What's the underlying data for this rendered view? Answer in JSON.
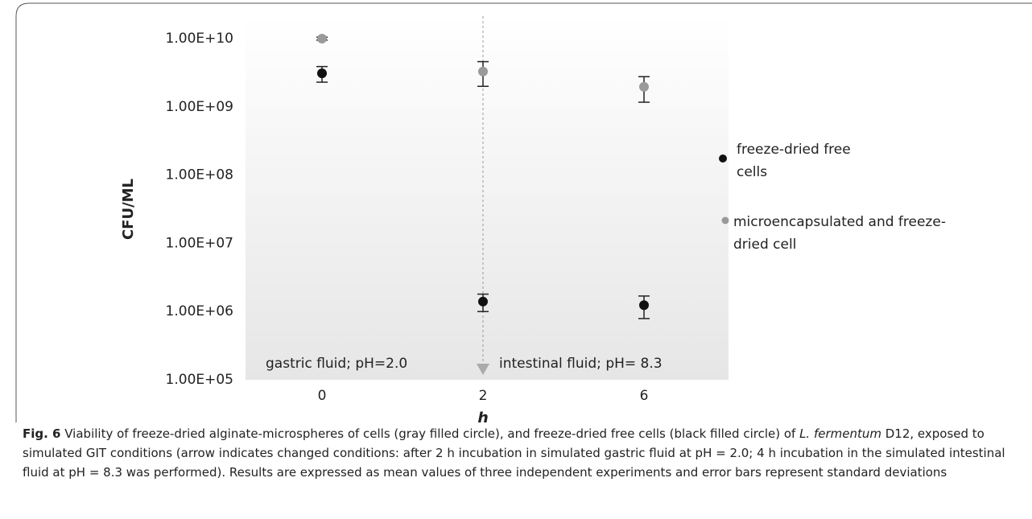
{
  "chart_data": {
    "type": "scatter",
    "y_label": "CFU/ML",
    "x_label": "h",
    "categories": [
      "0",
      "2",
      "6"
    ],
    "log_y": true,
    "ylim": [
      100000,
      10000000000
    ],
    "yticks": [
      {
        "value": 100000,
        "label": "1.00E+05"
      },
      {
        "value": 1000000,
        "label": "1.00E+06"
      },
      {
        "value": 10000000,
        "label": "1.00E+07"
      },
      {
        "value": 100000000,
        "label": "1.00E+08"
      },
      {
        "value": 1000000000,
        "label": "1.00E+09"
      },
      {
        "value": 10000000000,
        "label": "1.00E+10"
      }
    ],
    "series": [
      {
        "name": "freeze-dried free cells",
        "color": "#111111",
        "values": [
          3100000000,
          1400000,
          1240000
        ],
        "errors": [
          800000000,
          400000,
          450000
        ]
      },
      {
        "name": "microencapsulated and freeze-dried cell",
        "color": "#9a9a9a",
        "values": [
          10000000000,
          3300000000,
          1970000000
        ],
        "errors": [
          500000000,
          1300000000,
          800000000
        ]
      }
    ],
    "legend": "right",
    "annotations": [
      "gastric fluid; pH=2.0",
      "intestinal fluid; pH= 8.3"
    ]
  },
  "caption": {
    "label": "Fig. 6",
    "text_before": " Viability of freeze-dried alginate-microspheres of cells (gray filled circle), and freeze-dried free cells (black filled circle) of ",
    "italic": "L. fermentum",
    "text_after": " D12, exposed to simulated GIT conditions (arrow indicates changed conditions: after 2 h incubation in simulated gastric fluid at pH = 2.0; 4 h incubation in the simulated intestinal fluid at pH = 8.3 was performed). Results are expressed as mean values of three independent experiments and error bars represent standard deviations"
  }
}
